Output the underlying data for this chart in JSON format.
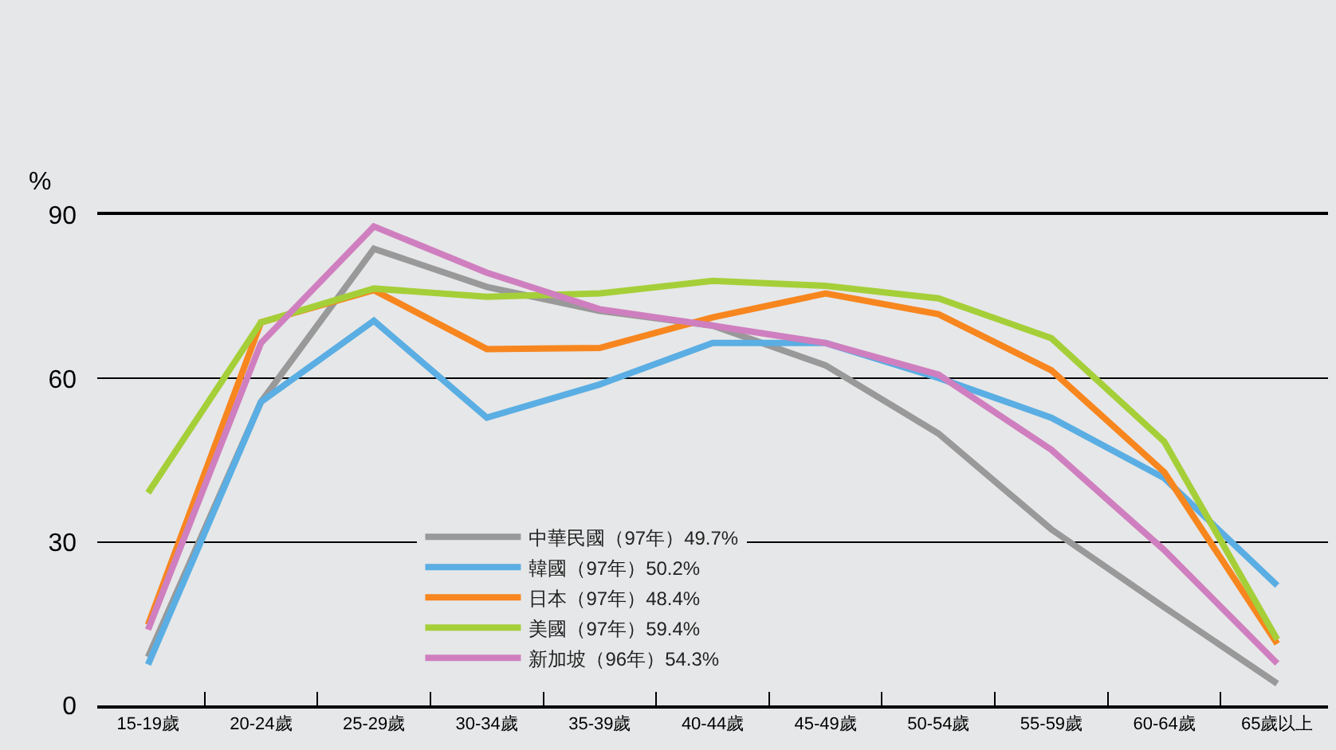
{
  "chart_data": {
    "type": "line",
    "ylabel": "%",
    "categories": [
      "15-19歲",
      "20-24歲",
      "25-29歲",
      "30-34歲",
      "35-39歲",
      "40-44歲",
      "45-49歲",
      "50-54歲",
      "55-59歲",
      "60-64歲",
      "65歲以上"
    ],
    "series": [
      {
        "name": "中華民國（97年）49.7%",
        "color": "#999999",
        "values": [
          8.9,
          55.7,
          83.8,
          76.8,
          72.4,
          69.7,
          62.4,
          49.9,
          32.3,
          18,
          4
        ]
      },
      {
        "name": "韓國（97年）50.2%",
        "color": "#5aaee3",
        "values": [
          7.5,
          55.7,
          70.6,
          52.8,
          58.9,
          66.5,
          66.5,
          60.1,
          52.8,
          41.7,
          22
        ]
      },
      {
        "name": "日本（97年）48.4%",
        "color": "#f7861f",
        "values": [
          14.8,
          70.3,
          76.2,
          65.4,
          65.6,
          71.2,
          75.6,
          71.8,
          61.5,
          42.8,
          11.3
        ]
      },
      {
        "name": "美國（97年）59.4%",
        "color": "#a5cf38",
        "values": [
          39,
          70.3,
          76.5,
          75,
          75.6,
          77.9,
          77,
          74.7,
          67.4,
          48.4,
          12.1
        ]
      },
      {
        "name": "新加坡（96年）54.3%",
        "color": "#cf7fbf",
        "values": [
          13.9,
          66.5,
          87.9,
          79.4,
          72.7,
          69.7,
          66.5,
          60.7,
          46.9,
          28.5,
          7.7
        ]
      }
    ],
    "ylim": [
      0,
      90
    ],
    "yticks": [
      0,
      30,
      60,
      90
    ],
    "grid": "y",
    "legend": "bottom left",
    "marker": "none",
    "line_style": "solid"
  }
}
